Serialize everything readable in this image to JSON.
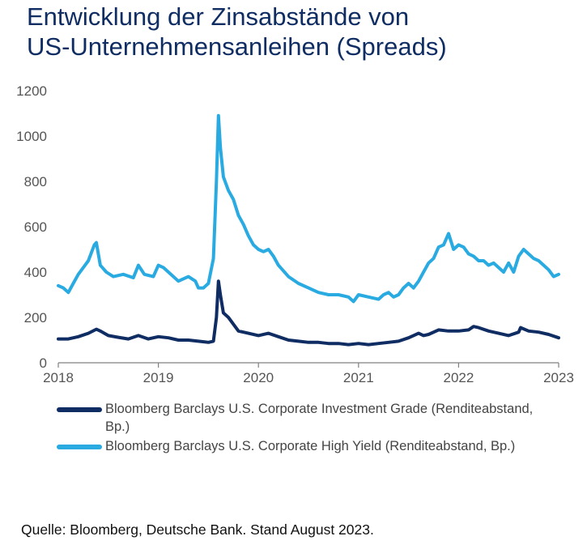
{
  "title_lines": [
    "Entwicklung der Zinsabstände von",
    "US-Unternehmensanleihen (Spreads)"
  ],
  "source": "Quelle: Bloomberg, Deutsche Bank. Stand August 2023.",
  "chart_data": {
    "type": "line",
    "title": "Entwicklung der Zinsabstände von US-Unternehmensanleihen (Spreads)",
    "xlabel": "",
    "ylabel": "",
    "xlim": [
      2018,
      2023
    ],
    "ylim": [
      0,
      1200
    ],
    "x_ticks": [
      "2018",
      "2019",
      "2020",
      "2021",
      "2022",
      "2023"
    ],
    "y_ticks": [
      "0",
      "200",
      "400",
      "600",
      "800",
      "1000",
      "1200"
    ],
    "grid": false,
    "legend_position": "bottom",
    "series": [
      {
        "name": "Bloomberg Barclays U.S. Corporate High Yield  (Renditeabstand, Bp.)",
        "color": "#29abe2",
        "x": [
          2018.0,
          2018.05,
          2018.1,
          2018.15,
          2018.2,
          2018.25,
          2018.3,
          2018.36,
          2018.38,
          2018.42,
          2018.48,
          2018.55,
          2018.65,
          2018.75,
          2018.8,
          2018.86,
          2018.95,
          2019.0,
          2019.05,
          2019.1,
          2019.2,
          2019.3,
          2019.37,
          2019.4,
          2019.45,
          2019.5,
          2019.55,
          2019.58,
          2019.6,
          2019.62,
          2019.65,
          2019.7,
          2019.75,
          2019.8,
          2019.85,
          2019.9,
          2019.95,
          2020.0,
          2020.05,
          2020.1,
          2020.15,
          2020.2,
          2020.3,
          2020.4,
          2020.5,
          2020.6,
          2020.7,
          2020.8,
          2020.9,
          2020.95,
          2021.0,
          2021.1,
          2021.2,
          2021.25,
          2021.3,
          2021.35,
          2021.4,
          2021.45,
          2021.5,
          2021.55,
          2021.6,
          2021.65,
          2021.7,
          2021.75,
          2021.8,
          2021.85,
          2021.9,
          2021.95,
          2022.0,
          2022.05,
          2022.1,
          2022.15,
          2022.2,
          2022.25,
          2022.3,
          2022.35,
          2022.4,
          2022.45,
          2022.5,
          2022.55,
          2022.6,
          2022.65,
          2022.7,
          2022.75,
          2022.8,
          2022.85,
          2022.9,
          2022.95,
          2023.0
        ],
        "y": [
          340,
          330,
          310,
          350,
          390,
          420,
          450,
          520,
          530,
          430,
          400,
          380,
          390,
          375,
          430,
          390,
          380,
          430,
          420,
          400,
          360,
          380,
          360,
          330,
          330,
          350,
          460,
          800,
          1090,
          950,
          820,
          760,
          720,
          650,
          610,
          560,
          520,
          500,
          490,
          500,
          470,
          430,
          380,
          350,
          330,
          310,
          300,
          300,
          290,
          270,
          300,
          290,
          280,
          300,
          310,
          290,
          300,
          330,
          350,
          330,
          360,
          400,
          440,
          460,
          510,
          520,
          570,
          500,
          520,
          510,
          480,
          470,
          450,
          450,
          430,
          440,
          420,
          400,
          440,
          400,
          470,
          500,
          480,
          460,
          450,
          430,
          410,
          380,
          390
        ]
      },
      {
        "name": "Bloomberg Barclays U.S. Corporate Investment Grade (Renditeabstand, Bp.)",
        "color": "#0f2d63",
        "x": [
          2018.0,
          2018.1,
          2018.2,
          2018.3,
          2018.38,
          2018.42,
          2018.5,
          2018.6,
          2018.7,
          2018.8,
          2018.9,
          2019.0,
          2019.1,
          2019.2,
          2019.3,
          2019.4,
          2019.5,
          2019.55,
          2019.58,
          2019.6,
          2019.62,
          2019.65,
          2019.7,
          2019.75,
          2019.8,
          2019.9,
          2020.0,
          2020.1,
          2020.2,
          2020.3,
          2020.4,
          2020.5,
          2020.6,
          2020.7,
          2020.8,
          2020.9,
          2021.0,
          2021.1,
          2021.2,
          2021.3,
          2021.4,
          2021.5,
          2021.6,
          2021.65,
          2021.7,
          2021.8,
          2021.9,
          2022.0,
          2022.1,
          2022.15,
          2022.2,
          2022.3,
          2022.4,
          2022.5,
          2022.6,
          2022.62,
          2022.7,
          2022.8,
          2022.9,
          2023.0
        ],
        "y": [
          105,
          105,
          115,
          130,
          148,
          140,
          120,
          112,
          105,
          120,
          105,
          115,
          110,
          100,
          100,
          95,
          90,
          95,
          200,
          360,
          300,
          220,
          200,
          170,
          140,
          130,
          120,
          130,
          115,
          100,
          95,
          90,
          90,
          85,
          85,
          80,
          85,
          80,
          85,
          90,
          95,
          110,
          130,
          120,
          125,
          145,
          140,
          140,
          145,
          160,
          155,
          140,
          130,
          120,
          135,
          155,
          140,
          135,
          125,
          110
        ]
      }
    ]
  }
}
